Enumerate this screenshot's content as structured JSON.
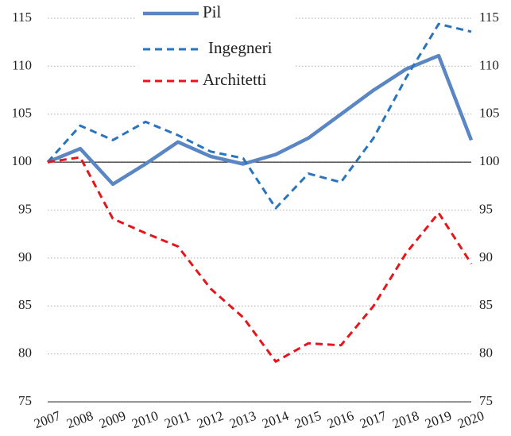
{
  "chart_data": {
    "type": "line",
    "categories": [
      "2007",
      "2008",
      "2009",
      "2010",
      "2011",
      "2012",
      "2013",
      "2014",
      "2015",
      "2016",
      "2017",
      "2018",
      "2019",
      "2020"
    ],
    "series": [
      {
        "name": "Pil",
        "color": "#5a86c4",
        "style": "solid",
        "values": [
          100,
          101.4,
          97.7,
          99.8,
          102.1,
          100.6,
          99.8,
          100.8,
          102.5,
          105.0,
          107.5,
          109.7,
          111.1,
          102.3
        ]
      },
      {
        "name": "Ingegneri",
        "color": "#2a74bd",
        "style": "dashed",
        "values": [
          100,
          103.8,
          102.3,
          104.2,
          102.8,
          101.1,
          100.4,
          95.2,
          98.8,
          97.9,
          102.5,
          108.8,
          114.4,
          113.6
        ]
      },
      {
        "name": "Architetti",
        "color": "#e8141b",
        "style": "dashed",
        "values": [
          100,
          100.5,
          94.1,
          92.6,
          91.2,
          86.8,
          83.8,
          79.2,
          81.1,
          80.9,
          85.0,
          90.5,
          94.7,
          89.4
        ]
      }
    ],
    "ylim": [
      75,
      115
    ],
    "yticks": [
      75,
      80,
      85,
      90,
      95,
      100,
      105,
      110,
      115
    ],
    "y2lim": [
      75,
      115
    ],
    "y2ticks": [
      75,
      80,
      85,
      90,
      95,
      100,
      105,
      110,
      115
    ],
    "reference_line": 100,
    "grid": true,
    "legend": "top"
  }
}
